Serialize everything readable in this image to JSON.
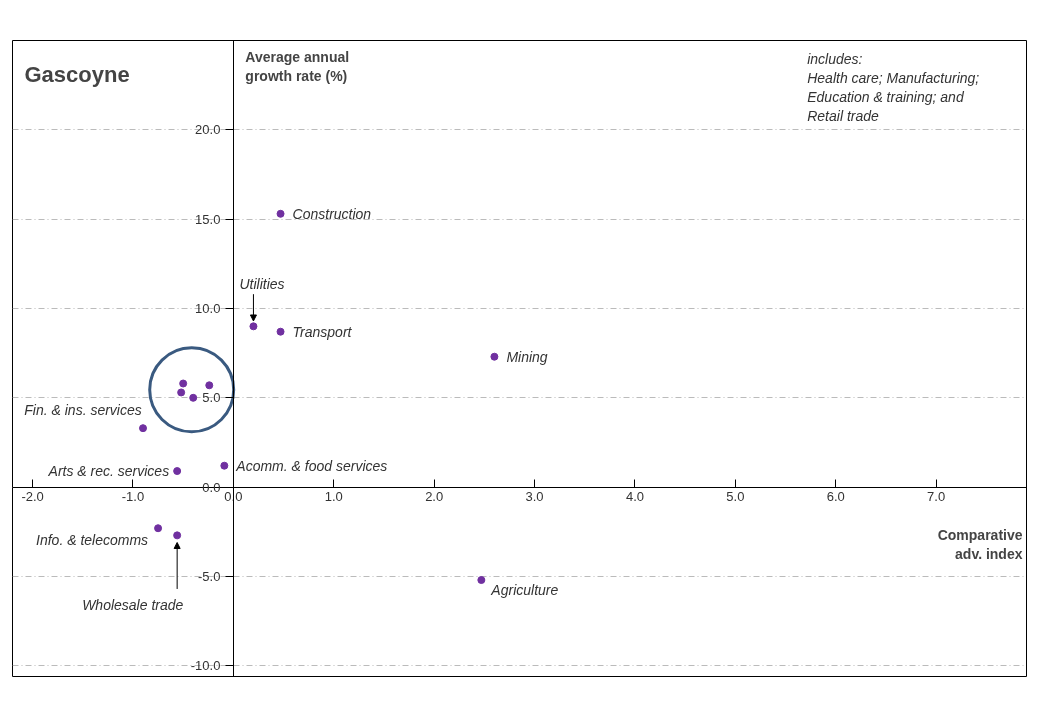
{
  "chart_data": {
    "type": "scatter",
    "title": "Gascoyne",
    "ylabel": "Average annual growth rate (%)",
    "xlabel": "Comparative adv. index",
    "x": [
      0.47,
      0.2,
      0.47,
      2.6,
      -0.5,
      -0.52,
      -0.4,
      -0.24,
      -0.9,
      -0.56,
      -0.09,
      -0.75,
      -0.56,
      2.47
    ],
    "values": [
      15.3,
      9.0,
      8.7,
      7.3,
      5.8,
      5.3,
      5.0,
      5.7,
      3.3,
      0.9,
      1.2,
      -2.3,
      -2.7,
      -5.2
    ],
    "color": "#7030a0",
    "marker": "circle",
    "xlim": [
      -2.2,
      7.9
    ],
    "ylim": [
      -10.6,
      25
    ],
    "xticks": [
      {
        "value": -2,
        "label": "-2.0"
      },
      {
        "value": -1,
        "label": "-1.0"
      },
      {
        "value": 0,
        "label": "0.0"
      },
      {
        "value": 1,
        "label": "1.0"
      },
      {
        "value": 2,
        "label": "2.0"
      },
      {
        "value": 3,
        "label": "3.0"
      },
      {
        "value": 4,
        "label": "4.0"
      },
      {
        "value": 5,
        "label": "5.0"
      },
      {
        "value": 6,
        "label": "6.0"
      },
      {
        "value": 7,
        "label": "7.0"
      }
    ],
    "yticks": [
      {
        "value": -10,
        "label": "-10.0"
      },
      {
        "value": -5,
        "label": "-5.0"
      },
      {
        "value": 0,
        "label": "0.0"
      },
      {
        "value": 5,
        "label": "5.0"
      },
      {
        "value": 10,
        "label": "10.0"
      },
      {
        "value": 15,
        "label": "15.0"
      },
      {
        "value": 20,
        "label": "20.0"
      }
    ],
    "grid": "y",
    "annotations": [
      {
        "text": "Construction",
        "x": 0.47,
        "y": 15.3
      },
      {
        "text": "Utilities",
        "x": 0.2,
        "y": 9.0
      },
      {
        "text": "Transport",
        "x": 0.47,
        "y": 8.7
      },
      {
        "text": "Mining",
        "x": 2.6,
        "y": 7.3
      },
      {
        "text": "Fin. & ins. services",
        "x": -0.9,
        "y": 3.3
      },
      {
        "text": "Arts & rec. services",
        "x": -0.56,
        "y": 0.9
      },
      {
        "text": "Acomm. & food services",
        "x": -0.09,
        "y": 1.2
      },
      {
        "text": "Info. & telecomms",
        "x": -0.75,
        "y": -2.3
      },
      {
        "text": "Wholesale trade",
        "x": -0.56,
        "y": -2.7
      },
      {
        "text": "Agriculture",
        "x": 2.47,
        "y": -5.2
      },
      "includes:\nHealth care; Manufacturing;\nEducation & training; and\nRetail trade"
    ]
  }
}
